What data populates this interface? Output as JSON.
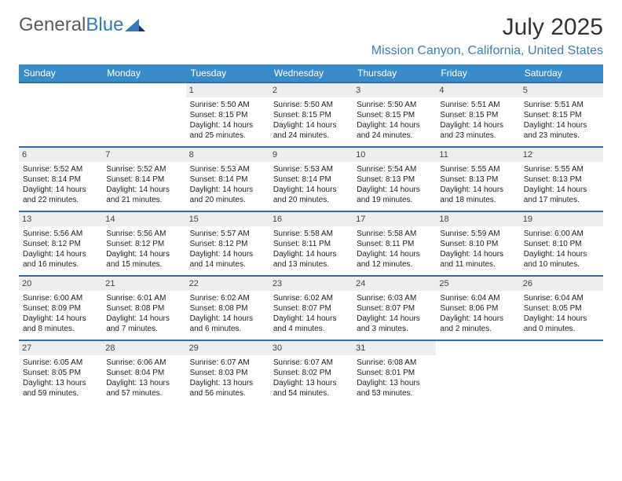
{
  "brand": {
    "name_gray": "General",
    "name_blue": "Blue"
  },
  "title": "July 2025",
  "location": "Mission Canyon, California, United States",
  "weekdays": [
    "Sunday",
    "Monday",
    "Tuesday",
    "Wednesday",
    "Thursday",
    "Friday",
    "Saturday"
  ],
  "colors": {
    "header_bg": "#3a8cc9",
    "header_text": "#ffffff",
    "week_border": "#2f6fa3",
    "daynum_bg": "#ecedef",
    "location_text": "#3a7fb8"
  },
  "weeks": [
    [
      {
        "n": "",
        "empty": true
      },
      {
        "n": "",
        "empty": true
      },
      {
        "n": "1",
        "sunrise": "Sunrise: 5:50 AM",
        "sunset": "Sunset: 8:15 PM",
        "daylight": "Daylight: 14 hours and 25 minutes."
      },
      {
        "n": "2",
        "sunrise": "Sunrise: 5:50 AM",
        "sunset": "Sunset: 8:15 PM",
        "daylight": "Daylight: 14 hours and 24 minutes."
      },
      {
        "n": "3",
        "sunrise": "Sunrise: 5:50 AM",
        "sunset": "Sunset: 8:15 PM",
        "daylight": "Daylight: 14 hours and 24 minutes."
      },
      {
        "n": "4",
        "sunrise": "Sunrise: 5:51 AM",
        "sunset": "Sunset: 8:15 PM",
        "daylight": "Daylight: 14 hours and 23 minutes."
      },
      {
        "n": "5",
        "sunrise": "Sunrise: 5:51 AM",
        "sunset": "Sunset: 8:15 PM",
        "daylight": "Daylight: 14 hours and 23 minutes."
      }
    ],
    [
      {
        "n": "6",
        "sunrise": "Sunrise: 5:52 AM",
        "sunset": "Sunset: 8:14 PM",
        "daylight": "Daylight: 14 hours and 22 minutes."
      },
      {
        "n": "7",
        "sunrise": "Sunrise: 5:52 AM",
        "sunset": "Sunset: 8:14 PM",
        "daylight": "Daylight: 14 hours and 21 minutes."
      },
      {
        "n": "8",
        "sunrise": "Sunrise: 5:53 AM",
        "sunset": "Sunset: 8:14 PM",
        "daylight": "Daylight: 14 hours and 20 minutes."
      },
      {
        "n": "9",
        "sunrise": "Sunrise: 5:53 AM",
        "sunset": "Sunset: 8:14 PM",
        "daylight": "Daylight: 14 hours and 20 minutes."
      },
      {
        "n": "10",
        "sunrise": "Sunrise: 5:54 AM",
        "sunset": "Sunset: 8:13 PM",
        "daylight": "Daylight: 14 hours and 19 minutes."
      },
      {
        "n": "11",
        "sunrise": "Sunrise: 5:55 AM",
        "sunset": "Sunset: 8:13 PM",
        "daylight": "Daylight: 14 hours and 18 minutes."
      },
      {
        "n": "12",
        "sunrise": "Sunrise: 5:55 AM",
        "sunset": "Sunset: 8:13 PM",
        "daylight": "Daylight: 14 hours and 17 minutes."
      }
    ],
    [
      {
        "n": "13",
        "sunrise": "Sunrise: 5:56 AM",
        "sunset": "Sunset: 8:12 PM",
        "daylight": "Daylight: 14 hours and 16 minutes."
      },
      {
        "n": "14",
        "sunrise": "Sunrise: 5:56 AM",
        "sunset": "Sunset: 8:12 PM",
        "daylight": "Daylight: 14 hours and 15 minutes."
      },
      {
        "n": "15",
        "sunrise": "Sunrise: 5:57 AM",
        "sunset": "Sunset: 8:12 PM",
        "daylight": "Daylight: 14 hours and 14 minutes."
      },
      {
        "n": "16",
        "sunrise": "Sunrise: 5:58 AM",
        "sunset": "Sunset: 8:11 PM",
        "daylight": "Daylight: 14 hours and 13 minutes."
      },
      {
        "n": "17",
        "sunrise": "Sunrise: 5:58 AM",
        "sunset": "Sunset: 8:11 PM",
        "daylight": "Daylight: 14 hours and 12 minutes."
      },
      {
        "n": "18",
        "sunrise": "Sunrise: 5:59 AM",
        "sunset": "Sunset: 8:10 PM",
        "daylight": "Daylight: 14 hours and 11 minutes."
      },
      {
        "n": "19",
        "sunrise": "Sunrise: 6:00 AM",
        "sunset": "Sunset: 8:10 PM",
        "daylight": "Daylight: 14 hours and 10 minutes."
      }
    ],
    [
      {
        "n": "20",
        "sunrise": "Sunrise: 6:00 AM",
        "sunset": "Sunset: 8:09 PM",
        "daylight": "Daylight: 14 hours and 8 minutes."
      },
      {
        "n": "21",
        "sunrise": "Sunrise: 6:01 AM",
        "sunset": "Sunset: 8:08 PM",
        "daylight": "Daylight: 14 hours and 7 minutes."
      },
      {
        "n": "22",
        "sunrise": "Sunrise: 6:02 AM",
        "sunset": "Sunset: 8:08 PM",
        "daylight": "Daylight: 14 hours and 6 minutes."
      },
      {
        "n": "23",
        "sunrise": "Sunrise: 6:02 AM",
        "sunset": "Sunset: 8:07 PM",
        "daylight": "Daylight: 14 hours and 4 minutes."
      },
      {
        "n": "24",
        "sunrise": "Sunrise: 6:03 AM",
        "sunset": "Sunset: 8:07 PM",
        "daylight": "Daylight: 14 hours and 3 minutes."
      },
      {
        "n": "25",
        "sunrise": "Sunrise: 6:04 AM",
        "sunset": "Sunset: 8:06 PM",
        "daylight": "Daylight: 14 hours and 2 minutes."
      },
      {
        "n": "26",
        "sunrise": "Sunrise: 6:04 AM",
        "sunset": "Sunset: 8:05 PM",
        "daylight": "Daylight: 14 hours and 0 minutes."
      }
    ],
    [
      {
        "n": "27",
        "sunrise": "Sunrise: 6:05 AM",
        "sunset": "Sunset: 8:05 PM",
        "daylight": "Daylight: 13 hours and 59 minutes."
      },
      {
        "n": "28",
        "sunrise": "Sunrise: 6:06 AM",
        "sunset": "Sunset: 8:04 PM",
        "daylight": "Daylight: 13 hours and 57 minutes."
      },
      {
        "n": "29",
        "sunrise": "Sunrise: 6:07 AM",
        "sunset": "Sunset: 8:03 PM",
        "daylight": "Daylight: 13 hours and 56 minutes."
      },
      {
        "n": "30",
        "sunrise": "Sunrise: 6:07 AM",
        "sunset": "Sunset: 8:02 PM",
        "daylight": "Daylight: 13 hours and 54 minutes."
      },
      {
        "n": "31",
        "sunrise": "Sunrise: 6:08 AM",
        "sunset": "Sunset: 8:01 PM",
        "daylight": "Daylight: 13 hours and 53 minutes."
      },
      {
        "n": "",
        "empty": true
      },
      {
        "n": "",
        "empty": true
      }
    ]
  ]
}
